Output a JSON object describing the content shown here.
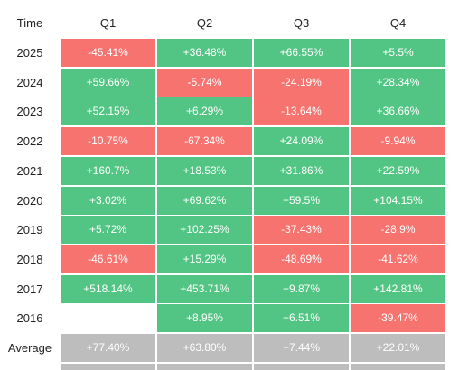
{
  "chart_data": {
    "type": "table",
    "title": "",
    "columns": [
      "Time",
      "Q1",
      "Q2",
      "Q3",
      "Q4"
    ],
    "rows": [
      {
        "label": "2025",
        "values": [
          "-45.41%",
          "+36.48%",
          "+66.55%",
          "+5.5%"
        ]
      },
      {
        "label": "2024",
        "values": [
          "+59.66%",
          "-5.74%",
          "-24.19%",
          "+28.34%"
        ]
      },
      {
        "label": "2023",
        "values": [
          "+52.15%",
          "+6.29%",
          "-13.64%",
          "+36.66%"
        ]
      },
      {
        "label": "2022",
        "values": [
          "-10.75%",
          "-67.34%",
          "+24.09%",
          "-9.94%"
        ]
      },
      {
        "label": "2021",
        "values": [
          "+160.7%",
          "+18.53%",
          "+31.86%",
          "+22.59%"
        ]
      },
      {
        "label": "2020",
        "values": [
          "+3.02%",
          "+69.62%",
          "+59.5%",
          "+104.15%"
        ]
      },
      {
        "label": "2019",
        "values": [
          "+5.72%",
          "+102.25%",
          "-37.43%",
          "-28.9%"
        ]
      },
      {
        "label": "2018",
        "values": [
          "-46.61%",
          "+15.29%",
          "-48.69%",
          "-41.62%"
        ]
      },
      {
        "label": "2017",
        "values": [
          "+518.14%",
          "+453.71%",
          "+9.87%",
          "+142.81%"
        ]
      },
      {
        "label": "2016",
        "values": [
          "",
          "+8.95%",
          "+6.51%",
          "-39.47%"
        ]
      },
      {
        "label": "Average",
        "values": [
          "+77.40%",
          "+63.80%",
          "+7.44%",
          "+22.01%"
        ],
        "summary": true
      }
    ]
  },
  "colors": {
    "positive": "#52c584",
    "negative": "#f6736f",
    "summary": "#bdbdbd",
    "text_on_cell": "#ffffff",
    "header_text": "#222222"
  }
}
